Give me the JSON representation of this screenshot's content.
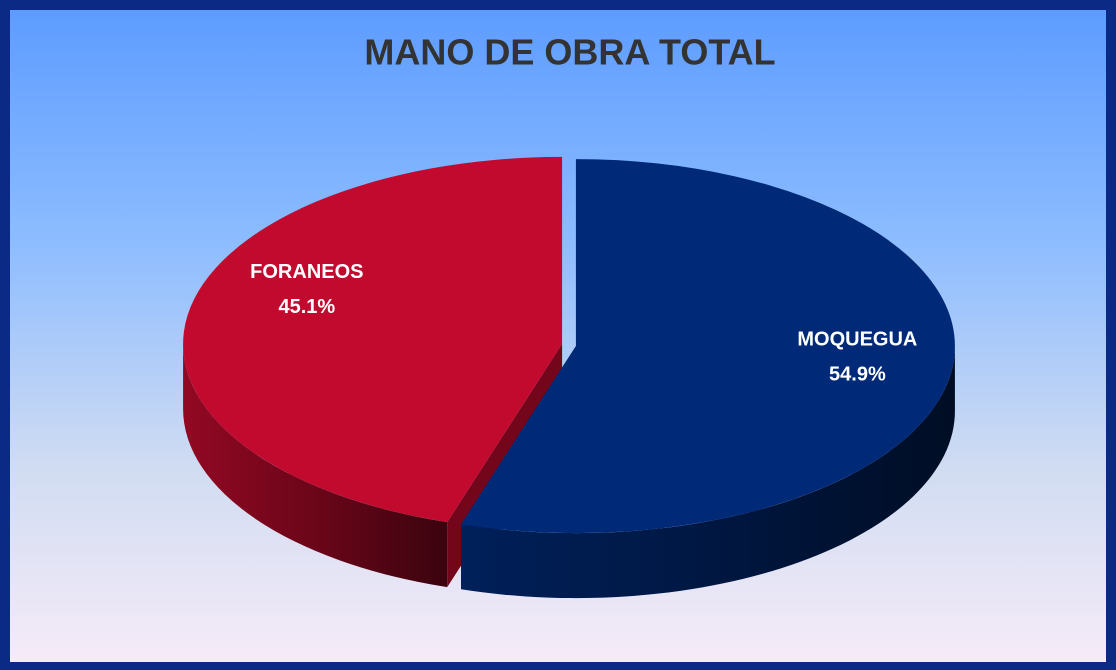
{
  "chart_data": {
    "type": "pie",
    "title": "MANO DE OBRA TOTAL",
    "categories": [
      "MOQUEGUA",
      "FORANEOS"
    ],
    "values": [
      54.9,
      45.1
    ],
    "value_labels": [
      "54.9%",
      "45.1%"
    ],
    "colors": [
      "#002a78",
      "#c20a2e"
    ]
  }
}
